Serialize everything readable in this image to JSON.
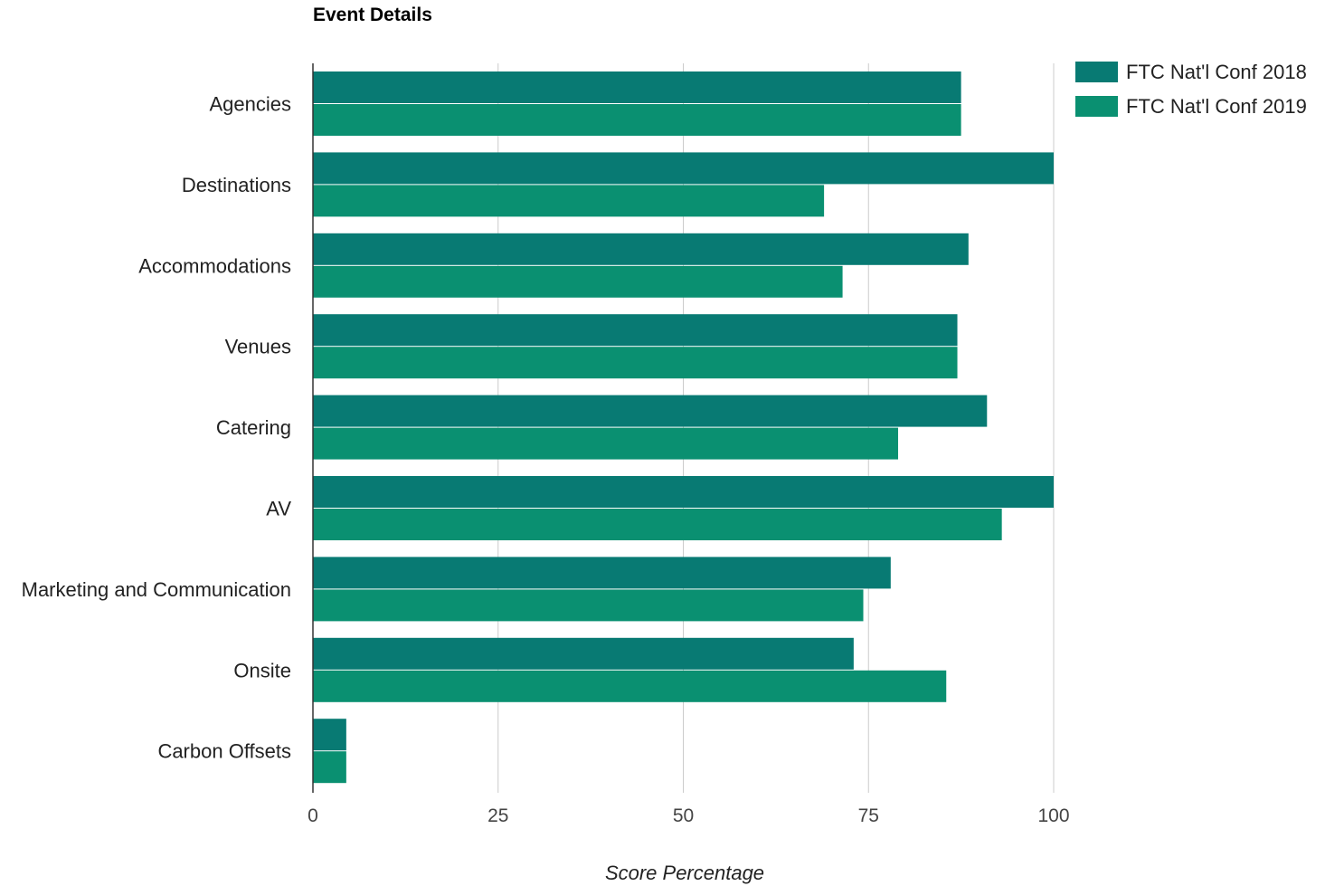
{
  "chart_data": {
    "type": "bar",
    "orientation": "horizontal",
    "title": "Event Details",
    "xlabel": "Score Percentage",
    "ylabel": "",
    "xlim": [
      0,
      100
    ],
    "xticks": [
      "0",
      "25",
      "50",
      "75",
      "100"
    ],
    "categories": [
      "Agencies",
      "Destinations",
      "Accommodations",
      "Venues",
      "Catering",
      "AV",
      "Marketing and Communication",
      "Onsite",
      "Carbon Offsets"
    ],
    "series": [
      {
        "name": "FTC Nat'l Conf 2018",
        "color": "#087a73",
        "values": [
          87.5,
          100,
          88.5,
          87,
          91,
          100,
          78,
          73,
          4.5
        ]
      },
      {
        "name": "FTC Nat'l Conf 2019",
        "color": "#0a9071",
        "values": [
          87.5,
          69,
          71.5,
          87,
          79,
          93,
          74.3,
          85.5,
          4.5
        ]
      }
    ],
    "grid": true,
    "legend_position": "top-right"
  }
}
